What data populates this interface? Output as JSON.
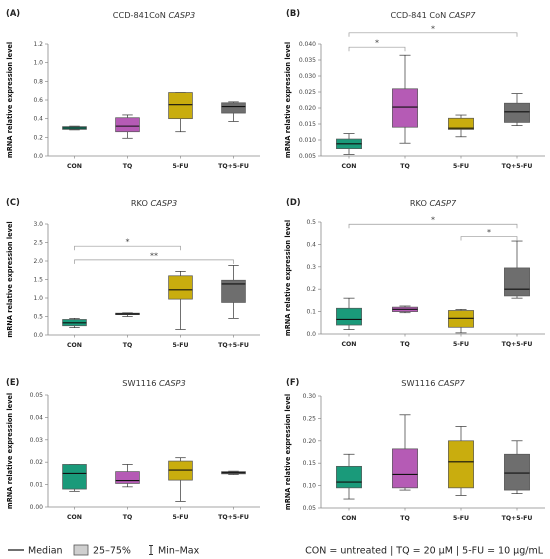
{
  "colors": {
    "CON": "#1a9a7a",
    "TQ": "#b55bb5",
    "5-FU": "#c9ad0e",
    "TQ+5-FU": "#6e6e6e"
  },
  "legend": {
    "median": "Median",
    "iqr": "25–75%",
    "range": "Min–Max",
    "note": "CON = untreated | TQ = 20 μM | 5-FU = 10 μg/mL"
  },
  "chart_data": [
    {
      "type": "box",
      "panel_label": "(A)",
      "title_prefix": "CCD-841CoN ",
      "title_gene": "CASP3",
      "ylabel": "mRNA relative expression level",
      "categories": [
        "CON",
        "TQ",
        "5-FU",
        "TQ+5-FU"
      ],
      "ylim": [
        0,
        1.2
      ],
      "yticks": [
        0.0,
        0.2,
        0.4,
        0.6,
        0.8,
        1.0,
        1.2
      ],
      "ytick_labels": [
        "0.0",
        "0.2",
        "0.4",
        "0.6",
        "0.8",
        "1.0",
        "1.2"
      ],
      "boxes": [
        {
          "min": 0.28,
          "q1": 0.285,
          "median": 0.3,
          "q3": 0.315,
          "max": 0.32
        },
        {
          "min": 0.19,
          "q1": 0.26,
          "median": 0.32,
          "q3": 0.41,
          "max": 0.44
        },
        {
          "min": 0.26,
          "q1": 0.4,
          "median": 0.55,
          "q3": 0.68,
          "max": 0.68
        },
        {
          "min": 0.37,
          "q1": 0.46,
          "median": 0.53,
          "q3": 0.57,
          "max": 0.58
        }
      ],
      "significance": []
    },
    {
      "type": "box",
      "panel_label": "(B)",
      "title_prefix": "CCD-841 CoN ",
      "title_gene": "CASP7",
      "ylabel": "mRNA relative expression level",
      "categories": [
        "CON",
        "TQ",
        "5-FU",
        "TQ+5-FU"
      ],
      "ylim": [
        0.005,
        0.04
      ],
      "yticks": [
        0.005,
        0.01,
        0.015,
        0.02,
        0.025,
        0.03,
        0.035,
        0.04
      ],
      "ytick_labels": [
        "0.005",
        "0.010",
        "0.015",
        "0.020",
        "0.025",
        "0.030",
        "0.035",
        "0.040"
      ],
      "boxes": [
        {
          "min": 0.0055,
          "q1": 0.0073,
          "median": 0.0088,
          "q3": 0.0103,
          "max": 0.012
        },
        {
          "min": 0.009,
          "q1": 0.014,
          "median": 0.0203,
          "q3": 0.026,
          "max": 0.0365
        },
        {
          "min": 0.011,
          "q1": 0.0133,
          "median": 0.0137,
          "q3": 0.0168,
          "max": 0.0178
        },
        {
          "min": 0.0145,
          "q1": 0.0155,
          "median": 0.0188,
          "q3": 0.0215,
          "max": 0.0245
        }
      ],
      "significance": [
        {
          "from": 0,
          "to": 1,
          "y": 0.039,
          "label": "*"
        },
        {
          "from": 0,
          "to": 3,
          "y": 0.0435,
          "label": "*"
        }
      ]
    },
    {
      "type": "box",
      "panel_label": "(C)",
      "title_prefix": "RKO ",
      "title_gene": "CASP3",
      "ylabel": "mRNA relative expression level",
      "categories": [
        "CON",
        "TQ",
        "5-FU",
        "TQ+5-FU"
      ],
      "ylim": [
        0,
        3.0
      ],
      "yticks": [
        0.0,
        0.5,
        1.0,
        1.5,
        2.0,
        2.5,
        3.0
      ],
      "ytick_labels": [
        "0.0",
        "0.5",
        "1.0",
        "1.5",
        "2.0",
        "2.5",
        "3.0"
      ],
      "boxes": [
        {
          "min": 0.2,
          "q1": 0.25,
          "median": 0.33,
          "q3": 0.42,
          "max": 0.45
        },
        {
          "min": 0.5,
          "q1": 0.55,
          "median": 0.57,
          "q3": 0.59,
          "max": 0.6
        },
        {
          "min": 0.15,
          "q1": 0.97,
          "median": 1.22,
          "q3": 1.6,
          "max": 1.72
        },
        {
          "min": 0.45,
          "q1": 0.88,
          "median": 1.38,
          "q3": 1.48,
          "max": 1.88
        }
      ],
      "significance": [
        {
          "from": 0,
          "to": 2,
          "y": 2.4,
          "label": "*"
        },
        {
          "from": 0,
          "to": 3,
          "y": 2.03,
          "label": "**"
        }
      ]
    },
    {
      "type": "box",
      "panel_label": "(D)",
      "title_prefix": "RKO ",
      "title_gene": "CASP7",
      "ylabel": "mRNA relative expression level",
      "categories": [
        "CON",
        "TQ",
        "5-FU",
        "TQ+5-FU"
      ],
      "ylim": [
        0,
        0.5
      ],
      "yticks": [
        0.0,
        0.1,
        0.2,
        0.3,
        0.4,
        0.5
      ],
      "ytick_labels": [
        "0.0",
        "0.1",
        "0.2",
        "0.3",
        "0.4",
        "0.5"
      ],
      "boxes": [
        {
          "min": 0.02,
          "q1": 0.04,
          "median": 0.065,
          "q3": 0.115,
          "max": 0.16
        },
        {
          "min": 0.095,
          "q1": 0.1,
          "median": 0.11,
          "q3": 0.12,
          "max": 0.125
        },
        {
          "min": 0.005,
          "q1": 0.03,
          "median": 0.07,
          "q3": 0.105,
          "max": 0.11
        },
        {
          "min": 0.16,
          "q1": 0.17,
          "median": 0.2,
          "q3": 0.295,
          "max": 0.415
        }
      ],
      "significance": [
        {
          "from": 0,
          "to": 3,
          "y": 0.49,
          "label": "*"
        },
        {
          "from": 2,
          "to": 3,
          "y": 0.435,
          "label": "*"
        }
      ]
    },
    {
      "type": "box",
      "panel_label": "(E)",
      "title_prefix": "SW1116 ",
      "title_gene": "CASP3",
      "ylabel": "mRNA relative expression level",
      "categories": [
        "CON",
        "TQ",
        "5-FU",
        "TQ+5-FU"
      ],
      "ylim": [
        0,
        0.05
      ],
      "yticks": [
        0.0,
        0.01,
        0.02,
        0.03,
        0.04,
        0.05
      ],
      "ytick_labels": [
        "0.00",
        "0.01",
        "0.02",
        "0.03",
        "0.04",
        "0.05"
      ],
      "boxes": [
        {
          "min": 0.007,
          "q1": 0.008,
          "median": 0.015,
          "q3": 0.019,
          "max": 0.019
        },
        {
          "min": 0.009,
          "q1": 0.0105,
          "median": 0.0118,
          "q3": 0.0158,
          "max": 0.019
        },
        {
          "min": 0.0025,
          "q1": 0.012,
          "median": 0.0165,
          "q3": 0.0205,
          "max": 0.022
        },
        {
          "min": 0.0145,
          "q1": 0.0148,
          "median": 0.0153,
          "q3": 0.0158,
          "max": 0.016
        }
      ],
      "significance": []
    },
    {
      "type": "box",
      "panel_label": "(F)",
      "title_prefix": "SW1116 ",
      "title_gene": "CASP7",
      "ylabel": "mRNA relative expression level",
      "categories": [
        "CON",
        "TQ",
        "5-FU",
        "TQ+5-FU"
      ],
      "ylim": [
        0.05,
        0.3
      ],
      "yticks": [
        0.05,
        0.1,
        0.15,
        0.2,
        0.25,
        0.3
      ],
      "ytick_labels": [
        "0.05",
        "0.10",
        "0.15",
        "0.20",
        "0.25",
        "0.30"
      ],
      "boxes": [
        {
          "min": 0.07,
          "q1": 0.095,
          "median": 0.108,
          "q3": 0.143,
          "max": 0.17
        },
        {
          "min": 0.09,
          "q1": 0.095,
          "median": 0.125,
          "q3": 0.182,
          "max": 0.258
        },
        {
          "min": 0.078,
          "q1": 0.095,
          "median": 0.153,
          "q3": 0.2,
          "max": 0.232
        },
        {
          "min": 0.082,
          "q1": 0.09,
          "median": 0.128,
          "q3": 0.17,
          "max": 0.2
        }
      ],
      "significance": []
    }
  ]
}
